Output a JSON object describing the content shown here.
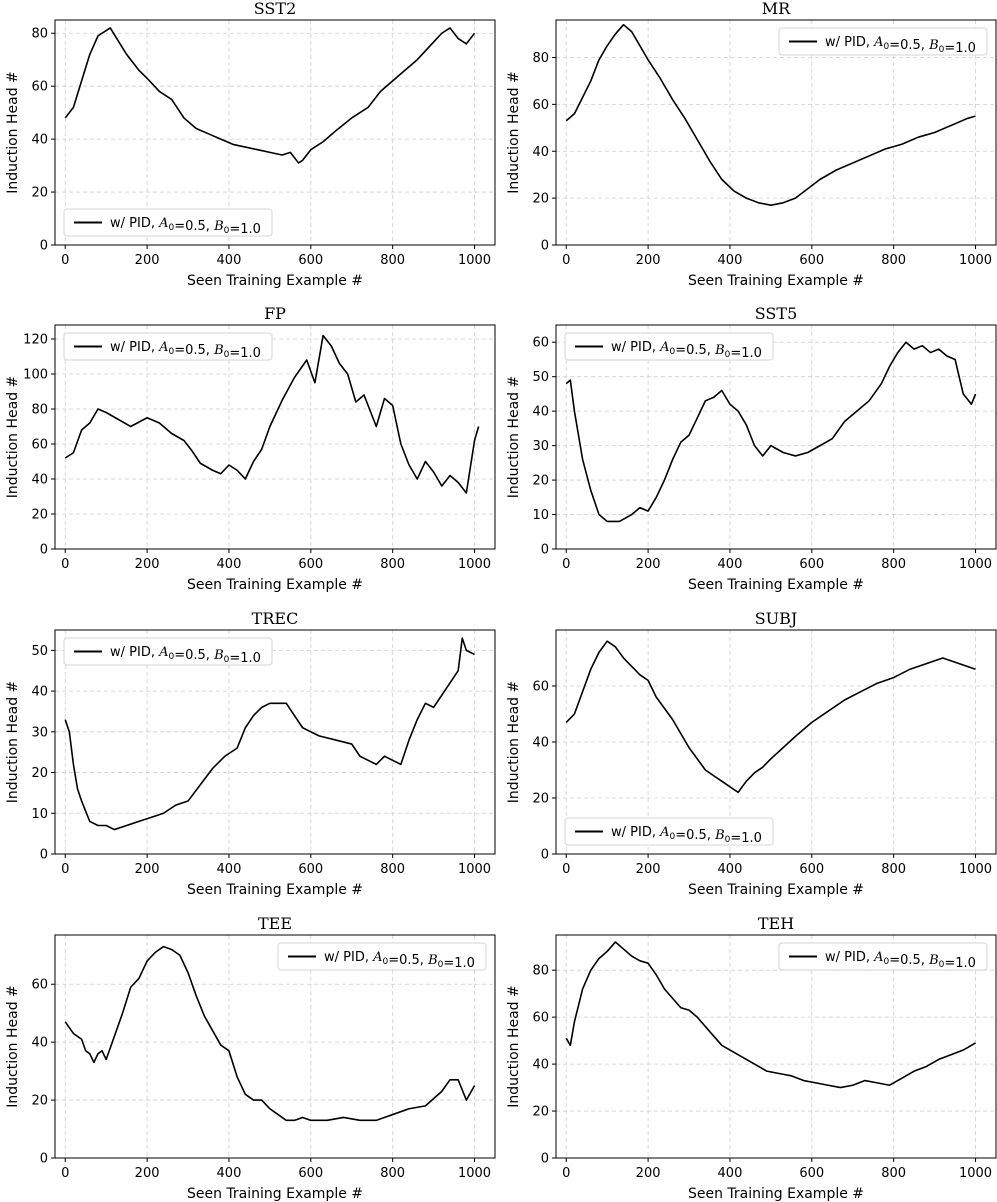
{
  "chart_data": [
    {
      "type": "line",
      "title": "SST2",
      "xlabel": "Seen Training Example #",
      "ylabel": "Induction Head #",
      "xlim": [
        -25,
        1050
      ],
      "ylim": [
        0,
        85
      ],
      "xticks": [
        0,
        200,
        400,
        600,
        800,
        1000
      ],
      "yticks": [
        0,
        20,
        40,
        60,
        80
      ],
      "grid": true,
      "legend_position": "lower-left",
      "series": [
        {
          "name": "w/ PID, A_0=0.5, B_0=1.0",
          "x": [
            0,
            20,
            40,
            60,
            80,
            100,
            110,
            130,
            150,
            180,
            200,
            230,
            260,
            290,
            320,
            350,
            380,
            410,
            440,
            470,
            500,
            530,
            550,
            570,
            580,
            600,
            630,
            660,
            700,
            740,
            770,
            800,
            830,
            860,
            890,
            920,
            940,
            960,
            980,
            1000
          ],
          "values": [
            48,
            52,
            62,
            72,
            79,
            81,
            82,
            77,
            72,
            66,
            63,
            58,
            55,
            48,
            44,
            42,
            40,
            38,
            37,
            36,
            35,
            34,
            35,
            31,
            32,
            36,
            39,
            43,
            48,
            52,
            58,
            62,
            66,
            70,
            75,
            80,
            82,
            78,
            76,
            80
          ]
        }
      ]
    },
    {
      "type": "line",
      "title": "MR",
      "xlabel": "Seen Training Example #",
      "ylabel": "Induction Head #",
      "xlim": [
        -25,
        1050
      ],
      "ylim": [
        0,
        96
      ],
      "xticks": [
        0,
        200,
        400,
        600,
        800,
        1000
      ],
      "yticks": [
        0,
        20,
        40,
        60,
        80
      ],
      "grid": true,
      "legend_position": "top-right",
      "series": [
        {
          "name": "w/ PID, A_0=0.5, B_0=1.0",
          "x": [
            0,
            20,
            40,
            60,
            80,
            100,
            120,
            140,
            160,
            180,
            200,
            230,
            260,
            290,
            320,
            350,
            380,
            410,
            440,
            470,
            500,
            530,
            560,
            590,
            620,
            660,
            700,
            740,
            780,
            820,
            860,
            900,
            940,
            980,
            1000
          ],
          "values": [
            53,
            56,
            63,
            70,
            79,
            85,
            90,
            94,
            91,
            85,
            79,
            71,
            62,
            54,
            45,
            36,
            28,
            23,
            20,
            18,
            17,
            18,
            20,
            24,
            28,
            32,
            35,
            38,
            41,
            43,
            46,
            48,
            51,
            54,
            55
          ]
        }
      ]
    },
    {
      "type": "line",
      "title": "FP",
      "xlabel": "Seen Training Example #",
      "ylabel": "Induction Head #",
      "xlim": [
        -25,
        1050
      ],
      "ylim": [
        0,
        128
      ],
      "xticks": [
        0,
        200,
        400,
        600,
        800,
        1000
      ],
      "yticks": [
        0,
        20,
        40,
        60,
        80,
        100,
        120
      ],
      "grid": true,
      "legend_position": "top-left",
      "series": [
        {
          "name": "w/ PID, A_0=0.5, B_0=1.0",
          "x": [
            0,
            20,
            40,
            60,
            80,
            100,
            130,
            160,
            200,
            230,
            260,
            290,
            310,
            330,
            360,
            380,
            400,
            420,
            440,
            460,
            480,
            500,
            530,
            560,
            590,
            610,
            630,
            650,
            670,
            690,
            710,
            730,
            760,
            780,
            800,
            820,
            840,
            860,
            880,
            900,
            920,
            940,
            960,
            980,
            1000,
            1010
          ],
          "values": [
            52,
            55,
            68,
            72,
            80,
            78,
            74,
            70,
            75,
            72,
            66,
            62,
            56,
            49,
            45,
            43,
            48,
            45,
            40,
            50,
            57,
            70,
            85,
            98,
            108,
            95,
            122,
            116,
            106,
            100,
            84,
            88,
            70,
            86,
            82,
            60,
            48,
            40,
            50,
            44,
            36,
            42,
            38,
            32,
            62,
            70
          ]
        }
      ]
    },
    {
      "type": "line",
      "title": "SST5",
      "xlabel": "Seen Training Example #",
      "ylabel": "Induction Head #",
      "xlim": [
        -25,
        1050
      ],
      "ylim": [
        0,
        65
      ],
      "xticks": [
        0,
        200,
        400,
        600,
        800,
        1000
      ],
      "yticks": [
        0,
        10,
        20,
        30,
        40,
        50,
        60
      ],
      "grid": true,
      "legend_position": "top-left",
      "series": [
        {
          "name": "w/ PID, A_0=0.5, B_0=1.0",
          "x": [
            0,
            10,
            20,
            40,
            60,
            80,
            100,
            130,
            160,
            180,
            200,
            220,
            240,
            260,
            280,
            300,
            320,
            340,
            360,
            380,
            400,
            420,
            440,
            460,
            480,
            500,
            530,
            560,
            590,
            620,
            650,
            680,
            710,
            740,
            770,
            790,
            810,
            830,
            850,
            870,
            890,
            910,
            930,
            950,
            970,
            990,
            1000
          ],
          "values": [
            48,
            49,
            40,
            26,
            17,
            10,
            8,
            8,
            10,
            12,
            11,
            15,
            20,
            26,
            31,
            33,
            38,
            43,
            44,
            46,
            42,
            40,
            36,
            30,
            27,
            30,
            28,
            27,
            28,
            30,
            32,
            37,
            40,
            43,
            48,
            53,
            57,
            60,
            58,
            59,
            57,
            58,
            56,
            55,
            45,
            42,
            45
          ]
        }
      ]
    },
    {
      "type": "line",
      "title": "TREC",
      "xlabel": "Seen Training Example #",
      "ylabel": "Induction Head #",
      "xlim": [
        -25,
        1050
      ],
      "ylim": [
        0,
        55
      ],
      "xticks": [
        0,
        200,
        400,
        600,
        800,
        1000
      ],
      "yticks": [
        0,
        10,
        20,
        30,
        40,
        50
      ],
      "grid": true,
      "legend_position": "top-left",
      "series": [
        {
          "name": "w/ PID, A_0=0.5, B_0=1.0",
          "x": [
            0,
            10,
            20,
            30,
            40,
            60,
            80,
            100,
            120,
            150,
            180,
            210,
            240,
            270,
            300,
            330,
            360,
            390,
            420,
            440,
            460,
            480,
            500,
            520,
            540,
            560,
            580,
            620,
            660,
            700,
            720,
            740,
            760,
            780,
            800,
            820,
            840,
            860,
            880,
            900,
            920,
            940,
            960,
            970,
            980,
            1000
          ],
          "values": [
            33,
            30,
            22,
            16,
            13,
            8,
            7,
            7,
            6,
            7,
            8,
            9,
            10,
            12,
            13,
            17,
            21,
            24,
            26,
            31,
            34,
            36,
            37,
            37,
            37,
            34,
            31,
            29,
            28,
            27,
            24,
            23,
            22,
            24,
            23,
            22,
            28,
            33,
            37,
            36,
            39,
            42,
            45,
            53,
            50,
            49
          ]
        }
      ]
    },
    {
      "type": "line",
      "title": "SUBJ",
      "xlabel": "Seen Training Example #",
      "ylabel": "Induction Head #",
      "xlim": [
        -25,
        1050
      ],
      "ylim": [
        0,
        80
      ],
      "xticks": [
        0,
        200,
        400,
        600,
        800,
        1000
      ],
      "yticks": [
        0,
        20,
        40,
        60
      ],
      "grid": true,
      "legend_position": "lower-left",
      "series": [
        {
          "name": "w/ PID, A_0=0.5, B_0=1.0",
          "x": [
            0,
            20,
            40,
            60,
            80,
            100,
            120,
            140,
            160,
            180,
            200,
            220,
            240,
            260,
            280,
            300,
            320,
            340,
            360,
            380,
            400,
            420,
            440,
            460,
            480,
            500,
            530,
            560,
            600,
            640,
            680,
            720,
            760,
            800,
            840,
            880,
            920,
            960,
            1000
          ],
          "values": [
            47,
            50,
            58,
            66,
            72,
            76,
            74,
            70,
            67,
            64,
            62,
            56,
            52,
            48,
            43,
            38,
            34,
            30,
            28,
            26,
            24,
            22,
            26,
            29,
            31,
            34,
            38,
            42,
            47,
            51,
            55,
            58,
            61,
            63,
            66,
            68,
            70,
            68,
            66
          ]
        }
      ]
    },
    {
      "type": "line",
      "title": "TEE",
      "xlabel": "Seen Training Example #",
      "ylabel": "Induction Head #",
      "xlim": [
        -25,
        1050
      ],
      "ylim": [
        0,
        77
      ],
      "xticks": [
        0,
        200,
        400,
        600,
        800,
        1000
      ],
      "yticks": [
        0,
        20,
        40,
        60
      ],
      "grid": true,
      "legend_position": "top-right",
      "series": [
        {
          "name": "w/ PID, A_0=0.5, B_0=1.0",
          "x": [
            0,
            10,
            20,
            40,
            50,
            60,
            70,
            80,
            90,
            100,
            120,
            140,
            160,
            180,
            200,
            220,
            240,
            260,
            280,
            300,
            320,
            340,
            360,
            380,
            400,
            420,
            440,
            460,
            480,
            500,
            520,
            540,
            560,
            580,
            600,
            640,
            680,
            720,
            760,
            800,
            840,
            880,
            920,
            940,
            960,
            980,
            1000
          ],
          "values": [
            47,
            45,
            43,
            41,
            37,
            36,
            33,
            36,
            37,
            34,
            42,
            50,
            59,
            62,
            68,
            71,
            73,
            72,
            70,
            64,
            56,
            49,
            44,
            39,
            37,
            28,
            22,
            20,
            20,
            17,
            15,
            13,
            13,
            14,
            13,
            13,
            14,
            13,
            13,
            15,
            17,
            18,
            23,
            27,
            27,
            20,
            25
          ]
        }
      ]
    },
    {
      "type": "line",
      "title": "TEH",
      "xlabel": "Seen Training Example #",
      "ylabel": "Induction Head #",
      "xlim": [
        -25,
        1050
      ],
      "ylim": [
        0,
        95
      ],
      "xticks": [
        0,
        200,
        400,
        600,
        800,
        1000
      ],
      "yticks": [
        0,
        20,
        40,
        60,
        80
      ],
      "grid": true,
      "legend_position": "top-right",
      "series": [
        {
          "name": "w/ PID, A_0=0.5, B_0=1.0",
          "x": [
            0,
            10,
            20,
            40,
            60,
            80,
            100,
            120,
            140,
            160,
            180,
            200,
            220,
            240,
            260,
            280,
            300,
            320,
            340,
            360,
            380,
            400,
            430,
            460,
            490,
            520,
            550,
            580,
            610,
            640,
            670,
            700,
            730,
            760,
            790,
            820,
            850,
            880,
            910,
            940,
            970,
            1000
          ],
          "values": [
            51,
            48,
            58,
            72,
            80,
            85,
            88,
            92,
            89,
            86,
            84,
            83,
            78,
            72,
            68,
            64,
            63,
            60,
            56,
            52,
            48,
            46,
            43,
            40,
            37,
            36,
            35,
            33,
            32,
            31,
            30,
            31,
            33,
            32,
            31,
            34,
            37,
            39,
            42,
            44,
            46,
            49
          ]
        }
      ]
    }
  ]
}
